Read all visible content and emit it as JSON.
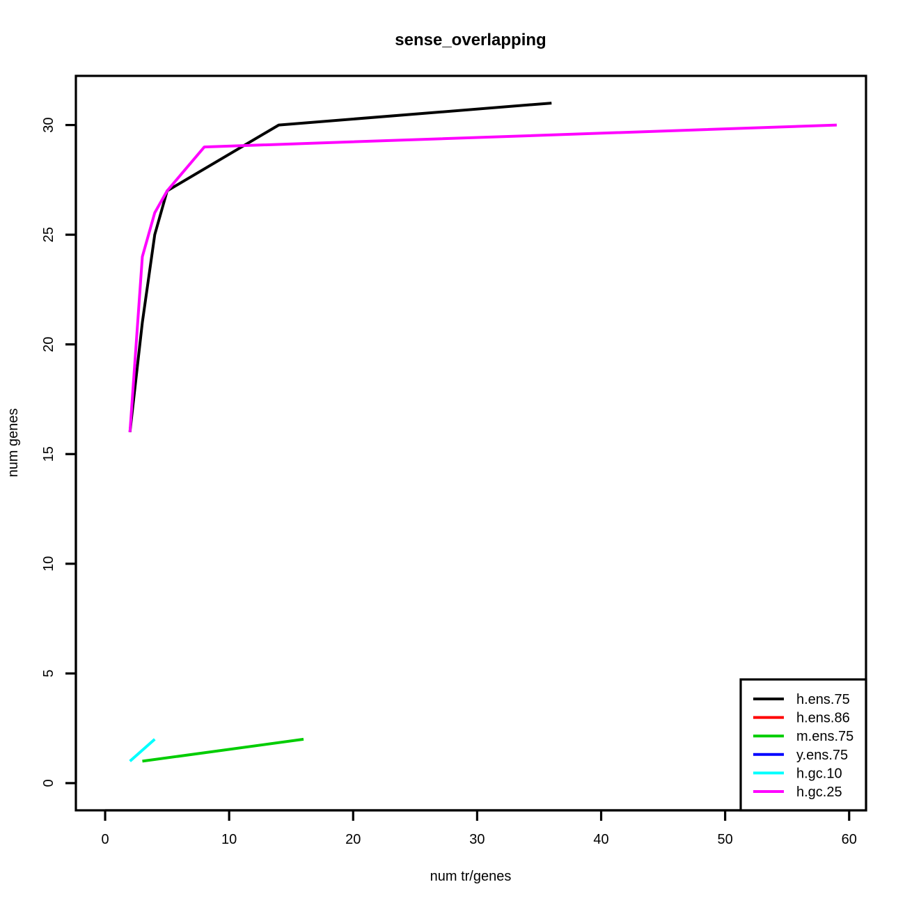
{
  "chart_data": {
    "type": "line",
    "title": "sense_overlapping",
    "xlabel": "num tr/genes",
    "ylabel": "num genes",
    "xlim": [
      -2.36,
      61.36
    ],
    "ylim": [
      -1.24,
      32.24
    ],
    "x_ticks": [
      0,
      10,
      20,
      30,
      40,
      50,
      60
    ],
    "y_ticks": [
      0,
      5,
      10,
      15,
      20,
      25,
      30
    ],
    "grid": false,
    "legend_position": "bottom-right",
    "series": [
      {
        "name": "h.ens.75",
        "color": "#000000",
        "x": [
          2,
          3,
          4,
          5,
          14,
          36
        ],
        "y": [
          16,
          21,
          25,
          27,
          30,
          31
        ]
      },
      {
        "name": "h.ens.86",
        "color": "#ff0000",
        "x": [],
        "y": []
      },
      {
        "name": "m.ens.75",
        "color": "#00cd00",
        "x": [
          3,
          16
        ],
        "y": [
          1,
          2
        ]
      },
      {
        "name": "y.ens.75",
        "color": "#0000ff",
        "x": [],
        "y": []
      },
      {
        "name": "h.gc.10",
        "color": "#00ffff",
        "x": [
          2,
          4
        ],
        "y": [
          1,
          2
        ]
      },
      {
        "name": "h.gc.25",
        "color": "#ff00ff",
        "x": [
          2,
          3,
          4,
          5,
          8,
          59
        ],
        "y": [
          16,
          24,
          26,
          27,
          29,
          30
        ]
      }
    ]
  }
}
